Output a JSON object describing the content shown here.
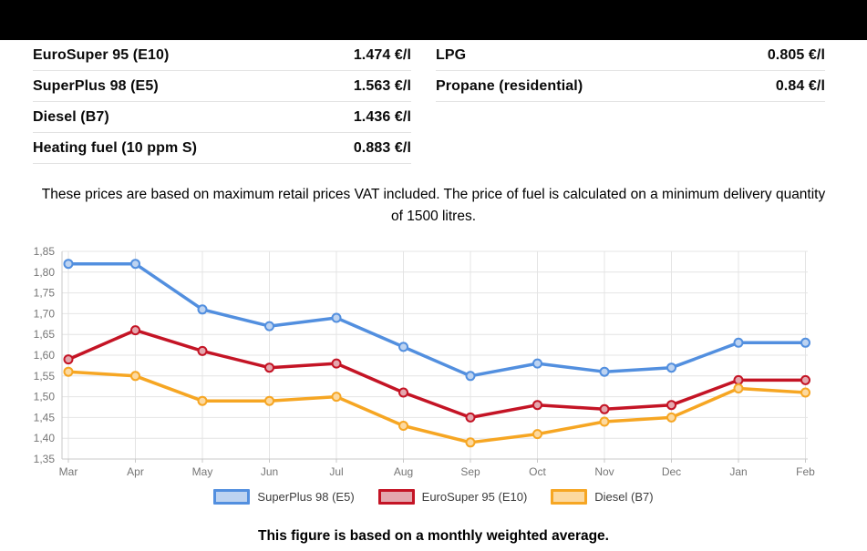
{
  "price_table": {
    "left_rows": [
      {
        "label": "EuroSuper 95 (E10)",
        "value": "1.474 €/l"
      },
      {
        "label": "SuperPlus 98 (E5)",
        "value": "1.563 €/l"
      },
      {
        "label": "Diesel (B7)",
        "value": "1.436 €/l"
      },
      {
        "label": "Heating fuel (10 ppm S)",
        "value": "0.883 €/l"
      }
    ],
    "right_rows": [
      {
        "label": "LPG",
        "value": "0.805 €/l"
      },
      {
        "label": "Propane (residential)",
        "value": "0.84 €/l"
      }
    ]
  },
  "note": {
    "text": "These prices are based on maximum retail prices VAT included. The price of fuel is calculated on a minimum delivery quantity of 1500 litres."
  },
  "chart_data": {
    "type": "line",
    "categories": [
      "Mar",
      "Apr",
      "May",
      "Jun",
      "Jul",
      "Aug",
      "Sep",
      "Oct",
      "Nov",
      "Dec",
      "Jan",
      "Feb"
    ],
    "series": [
      {
        "name": "SuperPlus 98 (E5)",
        "color": "#528fdf",
        "fill": "#bdd3f1",
        "values": [
          1.82,
          1.82,
          1.71,
          1.67,
          1.69,
          1.62,
          1.55,
          1.58,
          1.56,
          1.57,
          1.63,
          1.63
        ]
      },
      {
        "name": "EuroSuper 95 (E10)",
        "color": "#c41425",
        "fill": "#e4a7ae",
        "values": [
          1.59,
          1.66,
          1.61,
          1.57,
          1.58,
          1.51,
          1.45,
          1.48,
          1.47,
          1.48,
          1.54,
          1.54
        ]
      },
      {
        "name": "Diesel (B7)",
        "color": "#f6a623",
        "fill": "#fcd9a0",
        "values": [
          1.56,
          1.55,
          1.49,
          1.49,
          1.5,
          1.43,
          1.39,
          1.41,
          1.44,
          1.45,
          1.52,
          1.51
        ]
      }
    ],
    "ylim": [
      1.35,
      1.85
    ],
    "ytick_step": 0.05,
    "ytick_labels": [
      "1,85",
      "1,80",
      "1,75",
      "1,70",
      "1,65",
      "1,60",
      "1,55",
      "1,50",
      "1,45",
      "1,40",
      "1,35"
    ],
    "grid": true,
    "legend_position": "bottom",
    "title": "",
    "xlabel": "",
    "ylabel": ""
  },
  "footer": {
    "text": "This figure is based on a monthly weighted average."
  }
}
